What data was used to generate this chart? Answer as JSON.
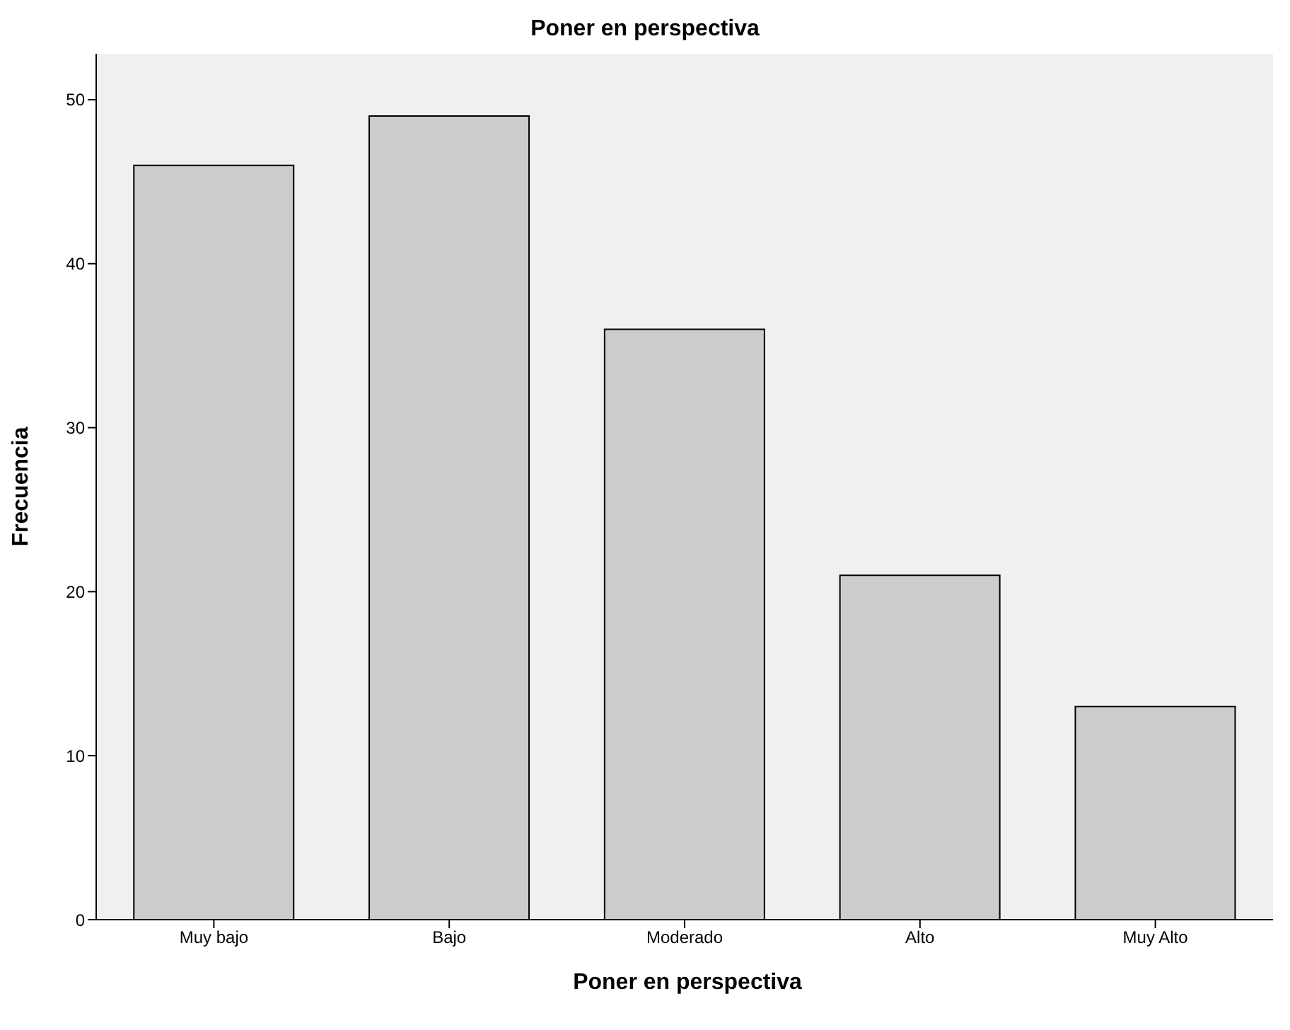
{
  "chart_data": {
    "type": "bar",
    "title": "Poner en perspectiva",
    "xlabel": "Poner en perspectiva",
    "ylabel": "Frecuencia",
    "categories": [
      "Muy bajo",
      "Bajo",
      "Moderado",
      "Alto",
      "Muy Alto"
    ],
    "values": [
      46,
      49,
      36,
      21,
      13
    ],
    "color": "#cccccc",
    "ylim": [
      0,
      52.8
    ],
    "yticks": [
      0,
      10,
      20,
      30,
      40,
      50
    ],
    "grid": false
  }
}
